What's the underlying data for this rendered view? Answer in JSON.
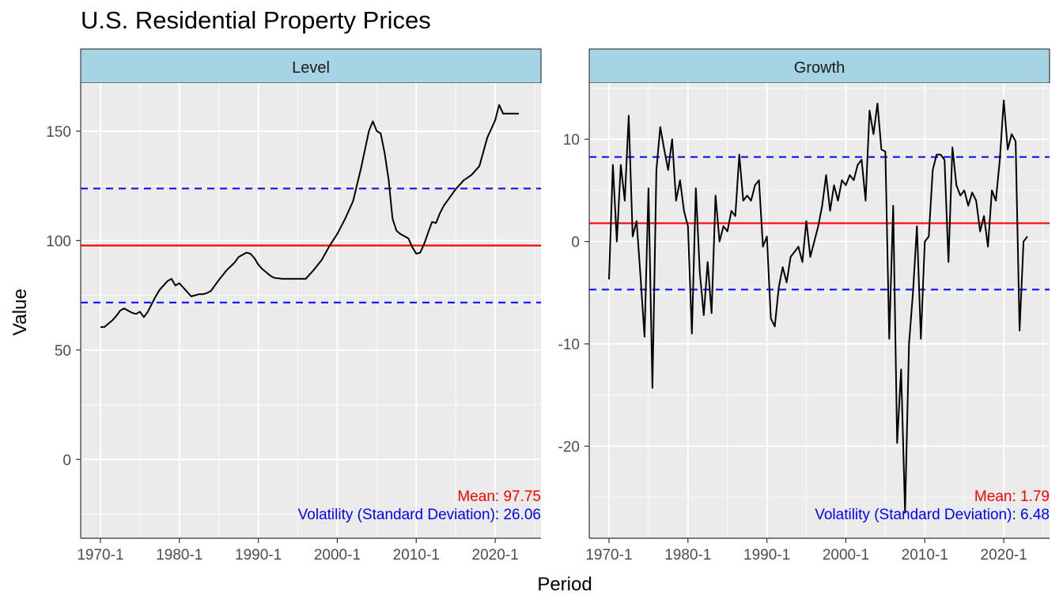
{
  "title": "U.S. Residential Property Prices",
  "xlabel": "Period",
  "ylabel": "Value",
  "chart_data": [
    {
      "type": "line",
      "panel": "Level",
      "xlim": [
        1967.5,
        2025.8
      ],
      "ylim": [
        -36,
        172
      ],
      "x_ticks": [
        1970,
        1980,
        1990,
        2000,
        2010,
        2020
      ],
      "x_tick_labels": [
        "1970-1",
        "1980-1",
        "1990-1",
        "2000-1",
        "2010-1",
        "2020-1"
      ],
      "y_ticks": [
        0,
        50,
        100,
        150
      ],
      "y_tick_labels": [
        "0",
        "50",
        "100",
        "150"
      ],
      "mean": 97.75,
      "upper_band": 123.81,
      "lower_band": 71.69,
      "mean_label": "Mean: 97.75",
      "volatility_label": "Volatility (Standard Deviation): 26.06",
      "colors": {
        "line": "#000000",
        "mean": "#ff0000",
        "band": "#0000ff"
      },
      "series": [
        {
          "name": "Level",
          "x": [
            1970.0,
            1970.5,
            1971.0,
            1971.5,
            1972.0,
            1972.5,
            1973.0,
            1973.5,
            1974.0,
            1974.5,
            1975.0,
            1975.5,
            1976.0,
            1976.5,
            1977.0,
            1977.5,
            1978.0,
            1978.5,
            1979.0,
            1979.5,
            1980.0,
            1980.5,
            1981.0,
            1981.5,
            1982.0,
            1982.5,
            1983.0,
            1983.5,
            1984.0,
            1985.0,
            1986.0,
            1987.0,
            1987.5,
            1988.0,
            1988.5,
            1989.0,
            1989.5,
            1990.0,
            1990.5,
            1991.0,
            1991.5,
            1992.0,
            1993.0,
            1994.0,
            1995.0,
            1996.0,
            1997.0,
            1998.0,
            1999.0,
            2000.0,
            2001.0,
            2002.0,
            2003.0,
            2004.0,
            2004.5,
            2005.0,
            2005.5,
            2006.0,
            2006.5,
            2007.0,
            2007.5,
            2008.0,
            2008.5,
            2009.0,
            2009.5,
            2010.0,
            2010.5,
            2011.0,
            2011.5,
            2012.0,
            2012.5,
            2013.0,
            2013.5,
            2014.0,
            2014.5,
            2015.0,
            2015.5,
            2016.0,
            2017.0,
            2018.0,
            2019.0,
            2020.0,
            2020.5,
            2021.0,
            2021.5,
            2022.0,
            2022.5,
            2023.0
          ],
          "values": [
            60.5,
            60.5,
            62,
            63.5,
            65.5,
            68,
            69,
            68,
            67,
            66.5,
            67.5,
            65,
            67.5,
            71,
            74.5,
            77.5,
            79.5,
            81.5,
            82.5,
            79.5,
            80.5,
            78.5,
            76.5,
            74.5,
            75,
            75.5,
            75.5,
            76,
            77,
            82,
            86.5,
            90,
            92.5,
            93.5,
            94.5,
            94,
            92,
            89,
            87,
            85.5,
            84,
            83,
            82.5,
            82.5,
            82.5,
            82.5,
            86.5,
            91,
            97.5,
            103,
            110,
            118,
            133,
            150,
            154.5,
            150,
            149,
            140,
            128,
            110,
            104.5,
            103,
            102,
            101,
            97,
            94,
            94.5,
            98.5,
            103.5,
            108.5,
            108,
            112.5,
            116,
            118.5,
            121,
            123.5,
            125.5,
            127.5,
            130,
            134,
            147,
            155,
            162,
            158,
            158,
            158,
            158,
            158
          ]
        }
      ]
    },
    {
      "type": "line",
      "panel": "Growth",
      "xlim": [
        1967.5,
        2025.8
      ],
      "ylim": [
        -29,
        15.5
      ],
      "x_ticks": [
        1970,
        1980,
        1990,
        2000,
        2010,
        2020
      ],
      "x_tick_labels": [
        "1970-1",
        "1980-1",
        "1990-1",
        "2000-1",
        "2010-1",
        "2020-1"
      ],
      "y_ticks": [
        -20,
        -10,
        0,
        10
      ],
      "y_tick_labels": [
        "-20",
        "-10",
        "0",
        "10"
      ],
      "mean": 1.79,
      "upper_band": 8.27,
      "lower_band": -4.69,
      "mean_label": "Mean: 1.79",
      "volatility_label": "Volatility (Standard Deviation): 6.48",
      "colors": {
        "line": "#000000",
        "mean": "#ff0000",
        "band": "#0000ff"
      },
      "series": [
        {
          "name": "Growth",
          "x": [
            1970.0,
            1970.5,
            1971.0,
            1971.5,
            1972.0,
            1972.5,
            1973.0,
            1973.5,
            1974.0,
            1974.5,
            1975.0,
            1975.5,
            1976.0,
            1976.5,
            1977.0,
            1977.5,
            1978.0,
            1978.5,
            1979.0,
            1979.5,
            1980.0,
            1980.5,
            1981.0,
            1981.5,
            1982.0,
            1982.5,
            1983.0,
            1983.5,
            1984.0,
            1984.5,
            1985.0,
            1985.5,
            1986.0,
            1986.5,
            1987.0,
            1987.5,
            1988.0,
            1988.5,
            1989.0,
            1989.5,
            1990.0,
            1990.5,
            1991.0,
            1991.5,
            1992.0,
            1992.5,
            1993.0,
            1993.5,
            1994.0,
            1994.5,
            1995.0,
            1995.5,
            1996.0,
            1996.5,
            1997.0,
            1997.5,
            1998.0,
            1998.5,
            1999.0,
            1999.5,
            2000.0,
            2000.5,
            2001.0,
            2001.5,
            2002.0,
            2002.5,
            2003.0,
            2003.5,
            2004.0,
            2004.5,
            2005.0,
            2005.5,
            2006.0,
            2006.5,
            2007.0,
            2007.5,
            2008.0,
            2008.5,
            2009.0,
            2009.5,
            2010.0,
            2010.5,
            2011.0,
            2011.5,
            2012.0,
            2012.5,
            2013.0,
            2013.5,
            2014.0,
            2014.5,
            2015.0,
            2015.5,
            2016.0,
            2016.5,
            2017.0,
            2017.5,
            2018.0,
            2018.5,
            2019.0,
            2019.5,
            2020.0,
            2020.5,
            2021.0,
            2021.5,
            2022.0,
            2022.5,
            2023.0
          ],
          "values": [
            -3.7,
            7.5,
            0,
            7.5,
            4,
            12.3,
            0.5,
            2,
            -3.5,
            -9.3,
            5.2,
            -14.3,
            7,
            11.2,
            9,
            7,
            10,
            4,
            6,
            3,
            1.5,
            -9,
            5.2,
            -3,
            -7.2,
            -2,
            -7,
            4.5,
            0,
            1.5,
            1,
            3,
            2.5,
            8.5,
            4,
            4.5,
            4,
            5.5,
            6,
            -0.5,
            0.5,
            -7.5,
            -8.3,
            -4.5,
            -2.5,
            -4,
            -1.5,
            -1,
            -0.5,
            -2,
            2,
            -1.5,
            0,
            1.5,
            3.5,
            6.5,
            3,
            5.5,
            4,
            6,
            5.5,
            6.5,
            6,
            7.5,
            8,
            4,
            12.8,
            10.5,
            13.5,
            9,
            8.8,
            -9.5,
            3.5,
            -19.7,
            -12.5,
            -26.5,
            -10,
            -5,
            1.5,
            -9.5,
            0,
            0.5,
            7,
            8.5,
            8.5,
            8,
            -2,
            9.2,
            5.5,
            4.5,
            5,
            3.5,
            4.8,
            4,
            1,
            2.5,
            -0.5,
            5,
            4,
            8,
            13.8,
            9,
            10.5,
            9.8,
            -8.7,
            0,
            0.5
          ]
        }
      ]
    }
  ],
  "facets": {
    "level": {
      "label": "Level"
    },
    "growth": {
      "label": "Growth"
    }
  }
}
